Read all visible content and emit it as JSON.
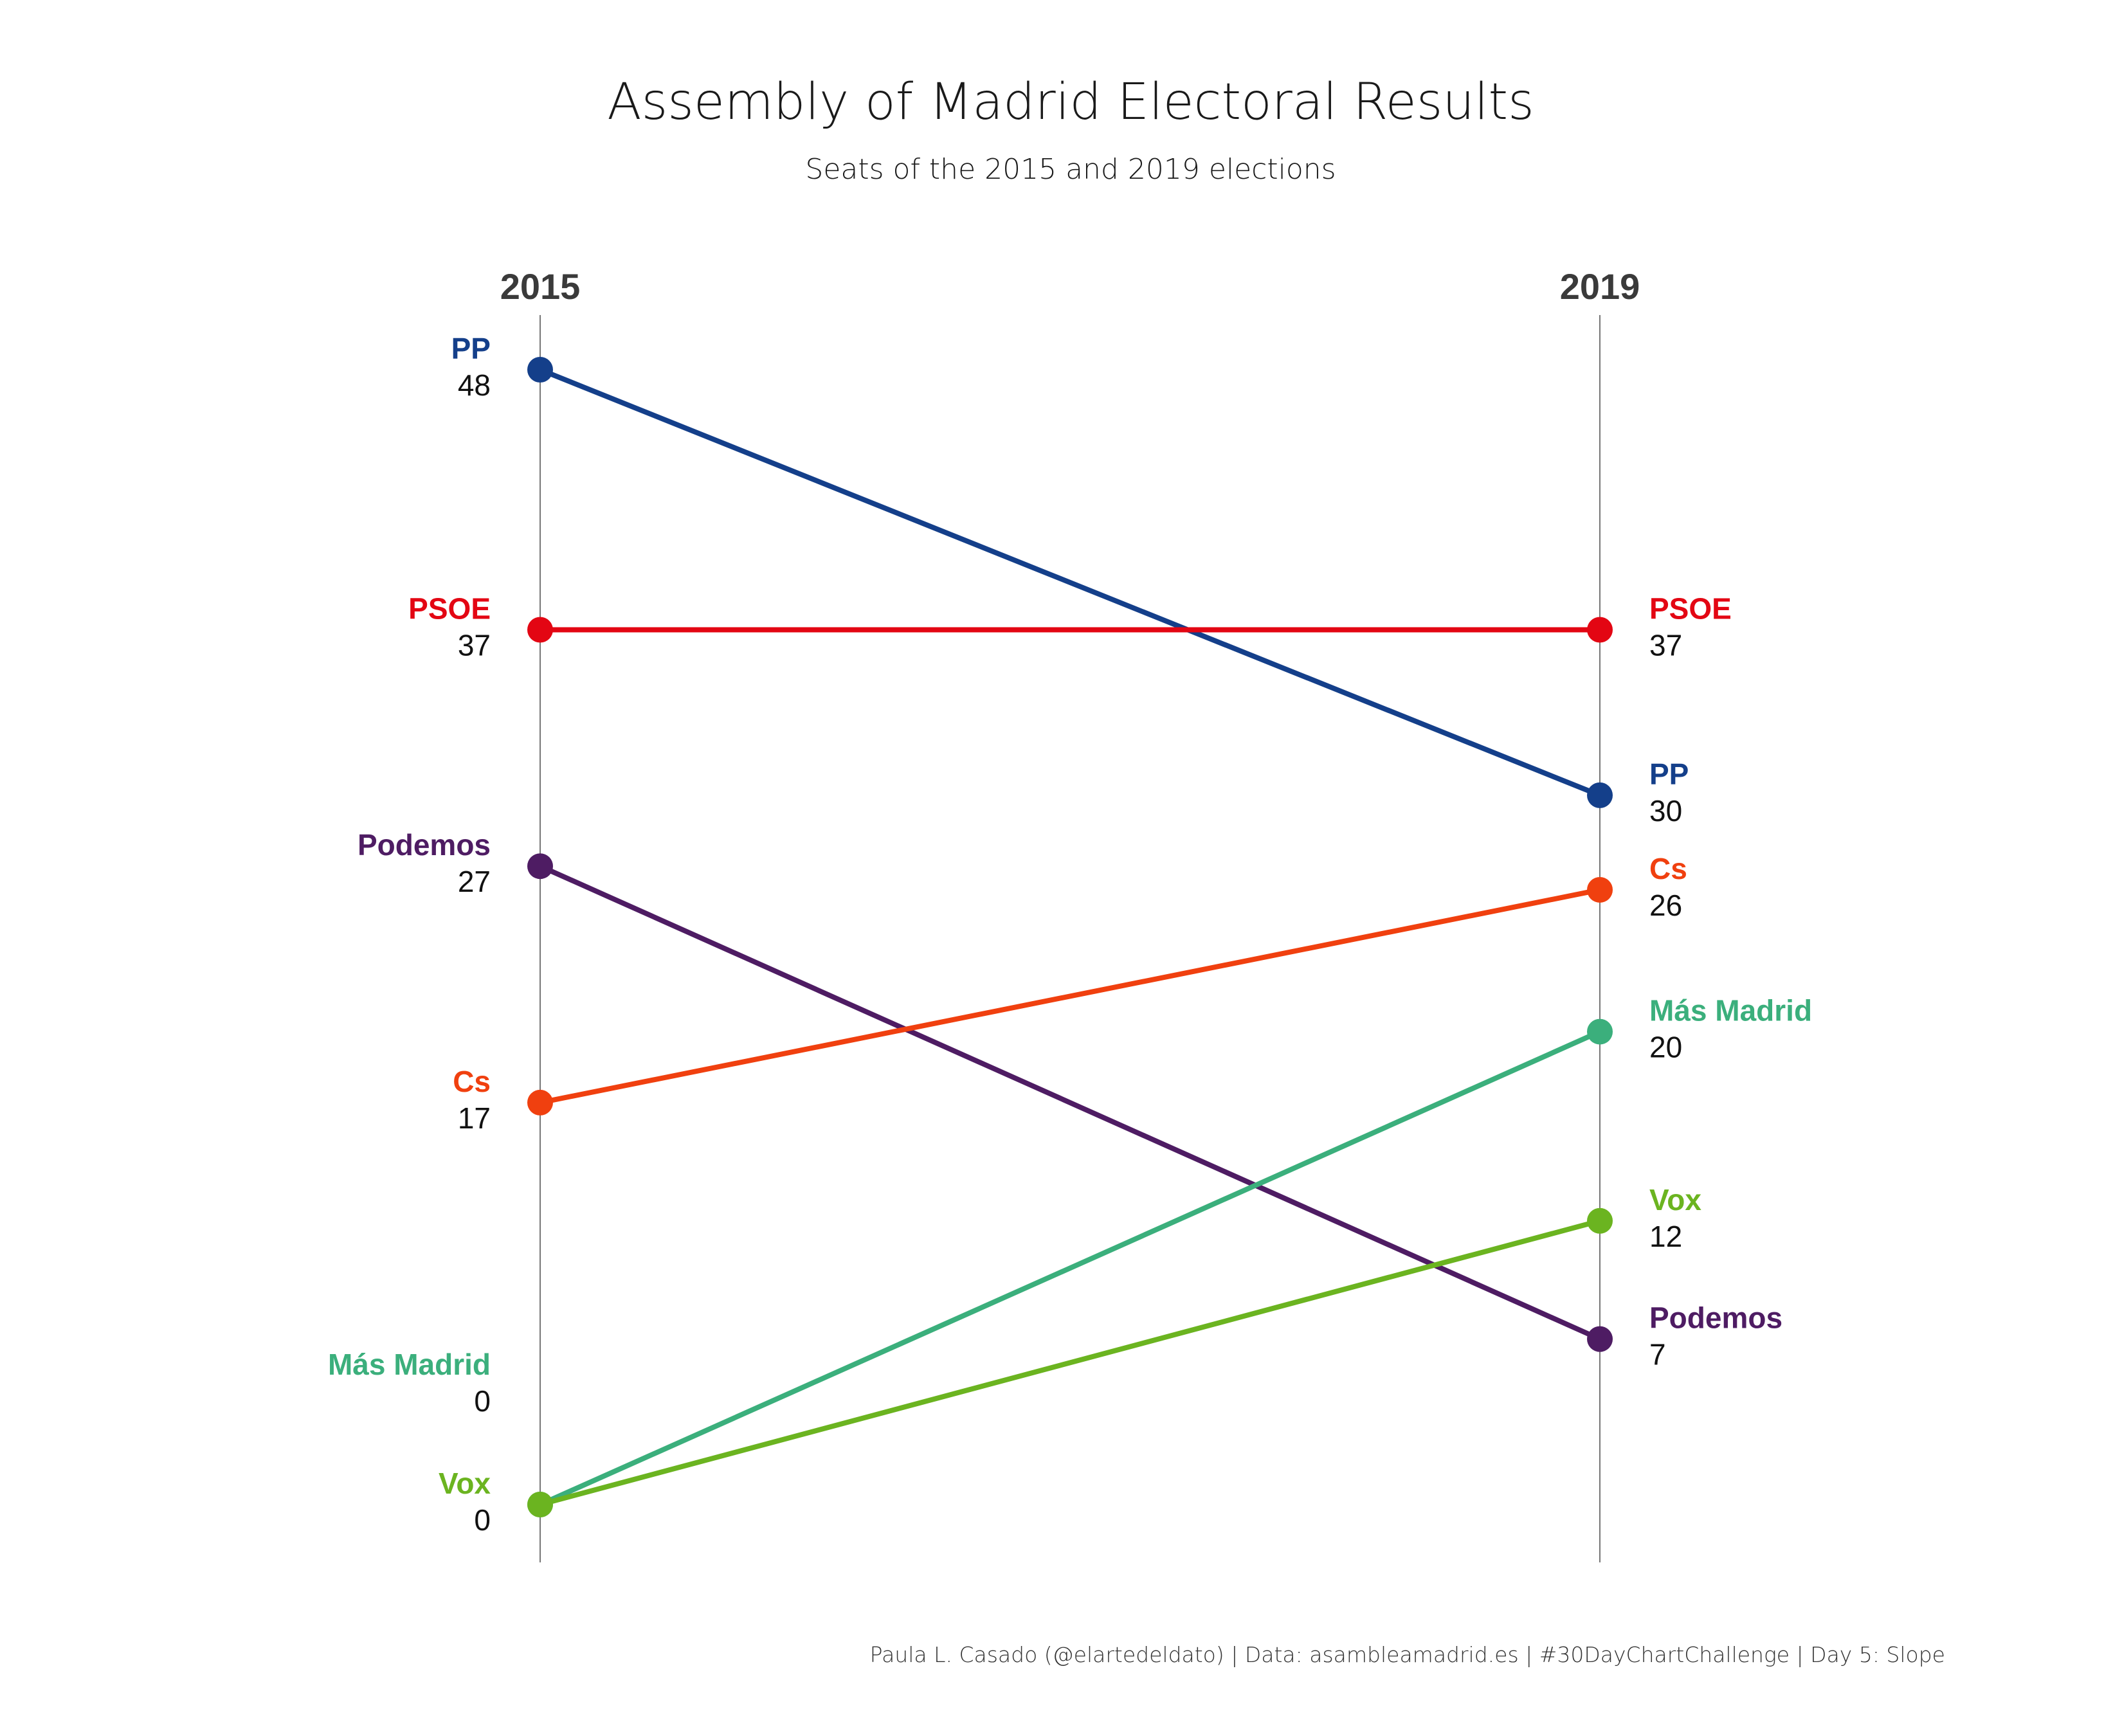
{
  "title": "Assembly of Madrid Electoral Results",
  "subtitle": "Seats of the 2015 and 2019 elections",
  "caption": "Paula L. Casado (@elartedeldato) | Data: asambleamadrid.es | #30DayChartChallenge | Day 5: Slope",
  "chart_data": {
    "type": "line",
    "subtype": "slope",
    "x": [
      "2015",
      "2019"
    ],
    "series": [
      {
        "name": "PP",
        "values": [
          48,
          30
        ],
        "color": "#143F8A"
      },
      {
        "name": "PSOE",
        "values": [
          37,
          37
        ],
        "color": "#E30613"
      },
      {
        "name": "Podemos",
        "values": [
          27,
          7
        ],
        "color": "#4E1C63"
      },
      {
        "name": "Cs",
        "values": [
          17,
          26
        ],
        "color": "#F0400F"
      },
      {
        "name": "Más Madrid",
        "values": [
          0,
          20
        ],
        "color": "#3BAF7C"
      },
      {
        "name": "Vox",
        "values": [
          0,
          12
        ],
        "color": "#6BB420"
      }
    ],
    "ylim": [
      0,
      48
    ],
    "grid": false,
    "legend": "none"
  }
}
